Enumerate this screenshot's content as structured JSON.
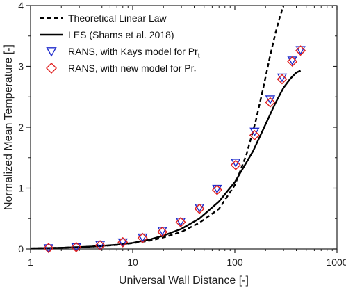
{
  "chart_data": {
    "type": "line",
    "xlabel": "Universal Wall Distance [-]",
    "ylabel": "Normalized Mean Temperature [-]",
    "x_scale": "log",
    "xlim": [
      1,
      1000
    ],
    "ylim": [
      0,
      4
    ],
    "x_ticks": [
      "1",
      "10",
      "100",
      "1000"
    ],
    "y_ticks": [
      "0",
      "1",
      "2",
      "3",
      "4"
    ],
    "grid": false,
    "legend_placement": "top-left",
    "series": [
      {
        "name": "Theoretical Linear Law",
        "style": "dashed",
        "color": "#000000",
        "x": [
          1,
          2,
          4,
          7,
          10,
          15,
          20,
          30,
          45,
          70,
          100,
          130,
          160,
          190,
          220,
          250,
          280,
          300
        ],
        "y": [
          0.009,
          0.019,
          0.038,
          0.066,
          0.095,
          0.14,
          0.19,
          0.28,
          0.43,
          0.66,
          1.05,
          1.55,
          2.1,
          2.65,
          3.15,
          3.55,
          3.85,
          4.0
        ]
      },
      {
        "name": "LES (Shams et al. 2018)",
        "style": "solid",
        "color": "#000000",
        "x": [
          1,
          2,
          4,
          7,
          10,
          15,
          20,
          30,
          45,
          70,
          100,
          150,
          200,
          250,
          300,
          350,
          400,
          440
        ],
        "y": [
          0.01,
          0.02,
          0.04,
          0.07,
          0.1,
          0.16,
          0.22,
          0.33,
          0.5,
          0.78,
          1.1,
          1.6,
          2.05,
          2.4,
          2.65,
          2.8,
          2.9,
          2.93
        ]
      },
      {
        "name": "RANS, with Kays model for Pr",
        "name_subscript": "t",
        "style": "triangle-down",
        "color": "#1f2bcc",
        "x": [
          1.5,
          2.8,
          4.8,
          8,
          12.5,
          19.5,
          29.5,
          45,
          67,
          102,
          156,
          222,
          290,
          365,
          440
        ],
        "y": [
          0.015,
          0.03,
          0.07,
          0.11,
          0.19,
          0.3,
          0.45,
          0.68,
          0.99,
          1.42,
          1.93,
          2.46,
          2.82,
          3.1,
          3.27
        ]
      },
      {
        "name": "RANS, with new model for Pr",
        "name_subscript": "t",
        "style": "diamond",
        "color": "#e02020",
        "x": [
          1.5,
          2.8,
          4.8,
          8,
          12.5,
          19.5,
          29.5,
          45,
          67,
          102,
          156,
          222,
          290,
          365,
          440
        ],
        "y": [
          0.015,
          0.03,
          0.06,
          0.11,
          0.18,
          0.28,
          0.44,
          0.66,
          0.97,
          1.38,
          1.87,
          2.41,
          2.79,
          3.08,
          3.26
        ]
      }
    ]
  }
}
